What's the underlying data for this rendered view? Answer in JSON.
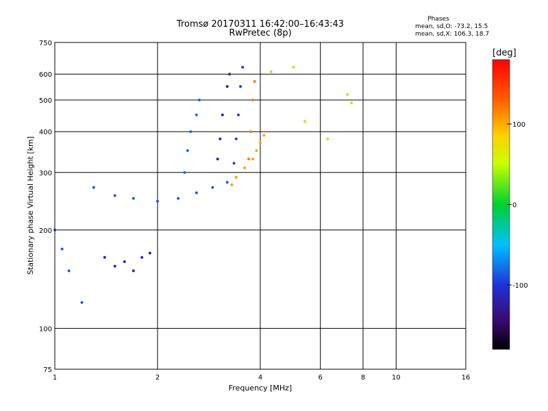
{
  "chart_data": {
    "type": "scatter",
    "title": "Tromsø 20170311 16:42:00–16:43:43",
    "subtitle": "RwPretec (8p)",
    "xlabel": "Frequency [MHz]",
    "ylabel": "Stationary phase Virtual Height [km]",
    "x_scale": "log",
    "y_scale": "log",
    "xlim": [
      1,
      16
    ],
    "ylim": [
      75,
      750
    ],
    "x_ticks": [
      1,
      2,
      4,
      6,
      8,
      10,
      16
    ],
    "y_ticks": [
      75,
      100,
      200,
      300,
      400,
      500,
      600,
      750
    ],
    "grid": true,
    "phase_stats": {
      "header": "Phases",
      "line_o": "mean, sd,O: -73.2, 15.5",
      "line_x": "mean, sd,X: 106.3, 18.7"
    },
    "colorbar": {
      "label": "[deg]",
      "range": [
        -180,
        180
      ],
      "ticks": [
        -100,
        0,
        100
      ]
    },
    "series": [
      {
        "x": [
          1.0,
          1.05,
          1.1,
          1.2,
          1.3,
          1.5,
          1.7,
          2.0,
          2.3,
          2.6,
          2.9,
          3.2
        ],
        "y": [
          200,
          175,
          150,
          120,
          270,
          255,
          250,
          245,
          250,
          260,
          270,
          280
        ],
        "phase": -85
      },
      {
        "x": [
          1.4,
          1.5,
          1.6,
          1.7,
          1.8,
          1.9
        ],
        "y": [
          165,
          155,
          160,
          150,
          165,
          170
        ],
        "phase": -115
      },
      {
        "x": [
          2.4,
          2.45,
          2.5,
          2.6,
          2.65
        ],
        "y": [
          300,
          350,
          400,
          450,
          500
        ],
        "phase": -80
      },
      {
        "x": [
          3.0,
          3.05,
          3.1,
          3.2,
          3.25
        ],
        "y": [
          330,
          380,
          450,
          550,
          600
        ],
        "phase": -115
      },
      {
        "x": [
          3.35,
          3.4,
          3.45,
          3.5,
          3.55
        ],
        "y": [
          320,
          380,
          450,
          550,
          630
        ],
        "phase": -95
      },
      {
        "x": [
          3.3,
          3.4,
          3.6,
          3.8,
          3.9,
          4.0,
          4.1
        ],
        "y": [
          275,
          290,
          310,
          330,
          350,
          370,
          390
        ],
        "phase": 105
      },
      {
        "x": [
          3.7,
          3.75,
          3.8,
          3.85
        ],
        "y": [
          330,
          400,
          500,
          570
        ],
        "phase": 120
      },
      {
        "x": [
          4.3,
          5.0,
          5.4,
          6.3,
          7.2,
          7.4
        ],
        "y": [
          610,
          630,
          430,
          380,
          520,
          490
        ],
        "phase": 40
      }
    ]
  }
}
